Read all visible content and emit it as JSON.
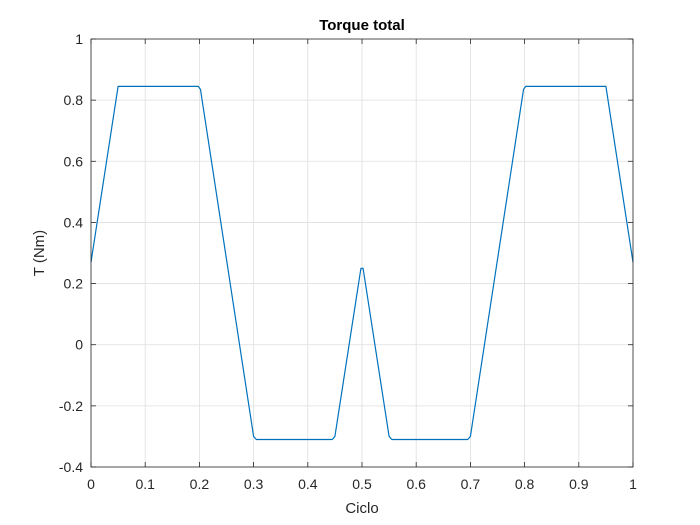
{
  "chart_data": {
    "type": "line",
    "title": "Torque total",
    "xlabel": "Ciclo",
    "ylabel": "T (Nm)",
    "xlim": [
      0,
      1
    ],
    "ylim": [
      -0.4,
      1
    ],
    "xticks": [
      0,
      0.1,
      0.2,
      0.3,
      0.4,
      0.5,
      0.6,
      0.7,
      0.8,
      0.9,
      1
    ],
    "xtick_labels": [
      "0",
      "0.1",
      "0.2",
      "0.3",
      "0.4",
      "0.5",
      "0.6",
      "0.7",
      "0.8",
      "0.9",
      "1"
    ],
    "yticks": [
      -0.4,
      -0.2,
      0,
      0.2,
      0.4,
      0.6,
      0.8,
      1
    ],
    "ytick_labels": [
      "-0.4",
      "-0.2",
      "0",
      "0.2",
      "0.4",
      "0.6",
      "0.8",
      "1"
    ],
    "grid": true,
    "series": [
      {
        "color": "#0072BD",
        "x": [
          0,
          0.05,
          0.198,
          0.202,
          0.3,
          0.305,
          0.445,
          0.45,
          0.498,
          0.502,
          0.55,
          0.555,
          0.695,
          0.7,
          0.798,
          0.802,
          0.95,
          1
        ],
        "y": [
          0.27,
          0.845,
          0.845,
          0.835,
          -0.3,
          -0.31,
          -0.31,
          -0.3,
          0.25,
          0.25,
          -0.3,
          -0.31,
          -0.31,
          -0.3,
          0.835,
          0.845,
          0.845,
          0.27
        ]
      }
    ]
  }
}
